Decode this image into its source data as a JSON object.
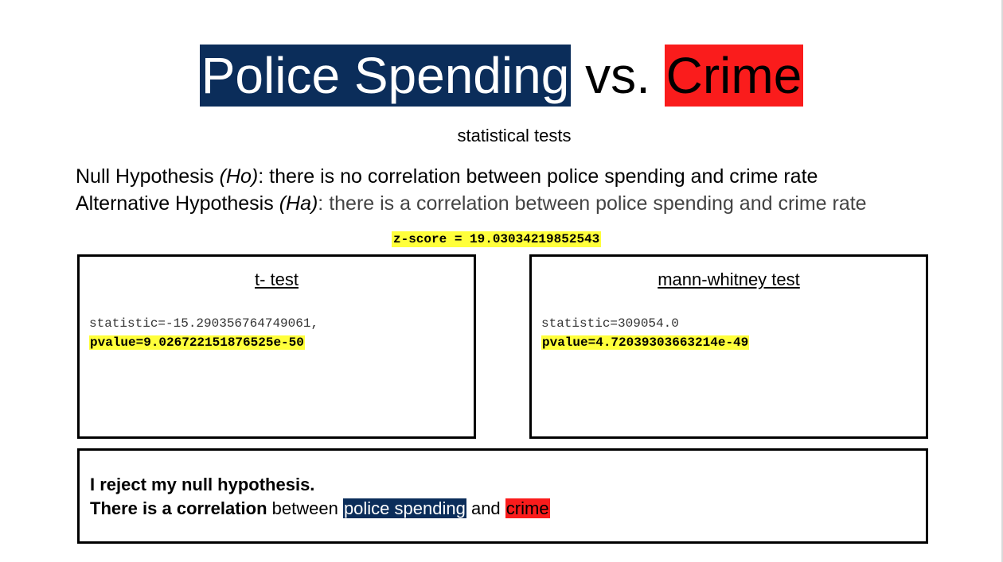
{
  "title": {
    "part1": "Police Spending",
    "part2": " vs. ",
    "part3": "Crime"
  },
  "subtitle": "statistical tests",
  "hypotheses": {
    "null_label": "Null Hypothesis ",
    "null_abbr": "(Ho)",
    "null_text": ": there is no correlation between police spending and crime rate",
    "alt_label": "Alternative Hypothesis ",
    "alt_abbr": "(Ha)",
    "alt_text": ": there is a correlation between police spending and crime rate"
  },
  "zscore": "z-score = 19.03034219852543",
  "ttest": {
    "title": "t- test",
    "statistic": "statistic=-15.290356764749061,",
    "pvalue": "pvalue=9.026722151876525e-50"
  },
  "mannwhitney": {
    "title": "mann-whitney test",
    "statistic": "statistic=309054.0",
    "pvalue": "pvalue=4.72039303663214e-49"
  },
  "conclusion": {
    "line1": "I reject my null hypothesis.",
    "line2_bold": "There is a correlation",
    "line2_mid": " between ",
    "line2_blue": "police spending",
    "line2_and": " and ",
    "line2_red": "crime"
  },
  "colors": {
    "navy_highlight": "#0b2d5a",
    "red_highlight": "#fa1c1c",
    "yellow_highlight": "#ffff3b"
  }
}
